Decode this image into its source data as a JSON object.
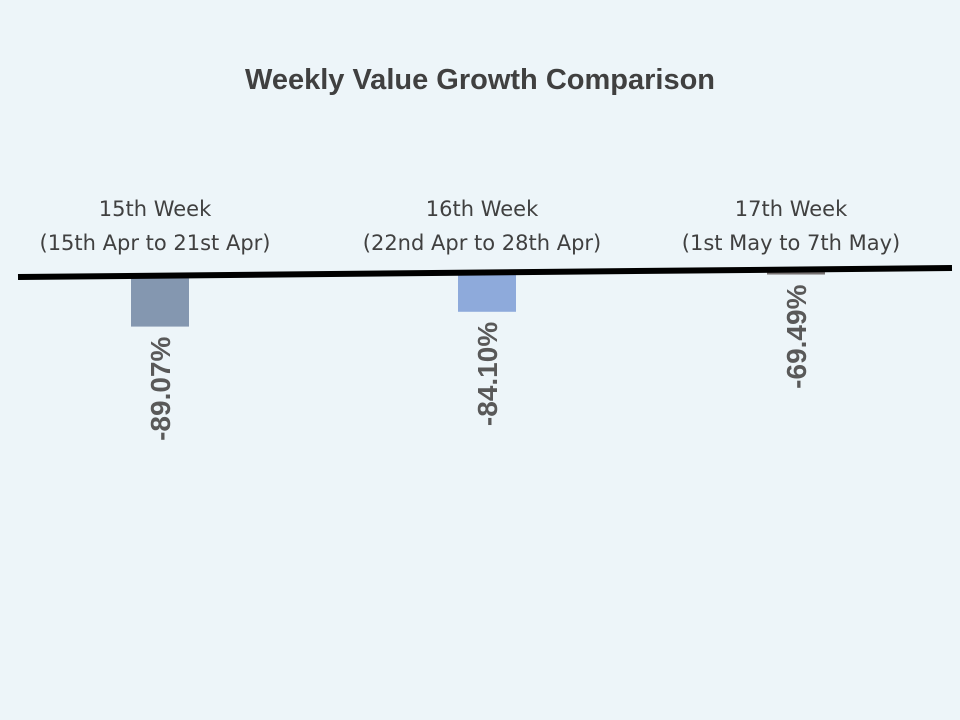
{
  "chart_data": {
    "type": "bar",
    "title": "Weekly Value Growth Comparison",
    "xlabel": "",
    "ylabel": "",
    "categories": [
      {
        "line1": "15th Week",
        "line2": "(15th Apr to 21st Apr)"
      },
      {
        "line1": "16th Week",
        "line2": "(22nd Apr to 28th Apr)"
      },
      {
        "line1": "17th Week",
        "line2": "(1st May to 7th May)"
      }
    ],
    "values": [
      -89.07,
      -84.1,
      -69.49
    ],
    "value_labels": [
      "-89.07%",
      "-84.10%",
      "-69.49%"
    ],
    "unit": "%",
    "colors": [
      "#8497b0",
      "#8eaadb",
      "#767171"
    ],
    "axis_color": "#000000",
    "grid": false,
    "legend": "none"
  }
}
